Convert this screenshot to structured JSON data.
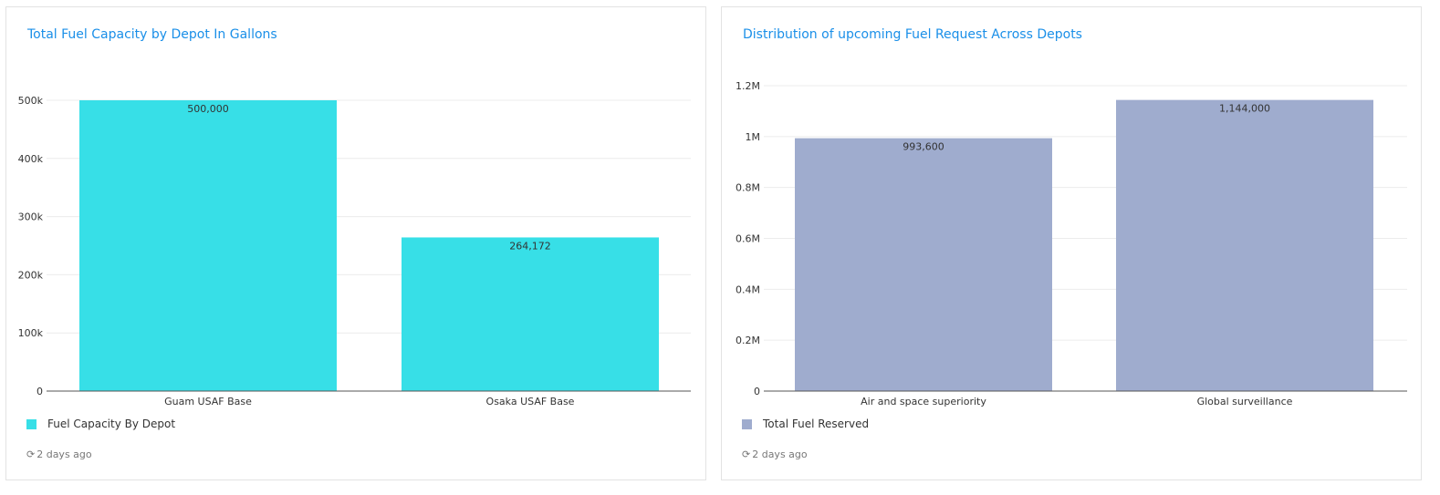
{
  "cards": [
    {
      "title": "Total Fuel Capacity by Depot In Gallons",
      "legend_label": "Fuel Capacity By Depot",
      "updated_text": "2 days ago",
      "color": "#37dfe7",
      "chart_data": {
        "type": "bar",
        "categories": [
          "Guam USAF Base",
          "Osaka USAF Base"
        ],
        "series": [
          {
            "name": "Fuel Capacity By Depot",
            "values": [
              500000,
              264172
            ]
          }
        ],
        "data_labels": [
          "500,000",
          "264,172"
        ],
        "ylim": [
          0,
          500000
        ],
        "yticks": [
          0,
          100000,
          200000,
          300000,
          400000,
          500000
        ],
        "ytick_labels": [
          "0",
          "100k",
          "200k",
          "300k",
          "400k",
          "500k"
        ],
        "grid": true,
        "legend_position": "bottom-left"
      }
    },
    {
      "title": "Distribution of upcoming Fuel Request Across Depots",
      "legend_label": "Total Fuel Reserved",
      "updated_text": "2 days ago",
      "color": "#9facce",
      "chart_data": {
        "type": "bar",
        "categories": [
          "Air and space superiority",
          "Global surveillance"
        ],
        "series": [
          {
            "name": "Total Fuel Reserved",
            "values": [
              993600,
              1144000
            ]
          }
        ],
        "data_labels": [
          "993,600",
          "1,144,000"
        ],
        "ylim": [
          0,
          1200000
        ],
        "yticks": [
          0,
          200000,
          400000,
          600000,
          800000,
          1000000,
          1200000
        ],
        "ytick_labels": [
          "0",
          "0.2M",
          "0.4M",
          "0.6M",
          "0.8M",
          "1M",
          "1.2M"
        ],
        "grid": true,
        "legend_position": "bottom-left"
      }
    }
  ]
}
